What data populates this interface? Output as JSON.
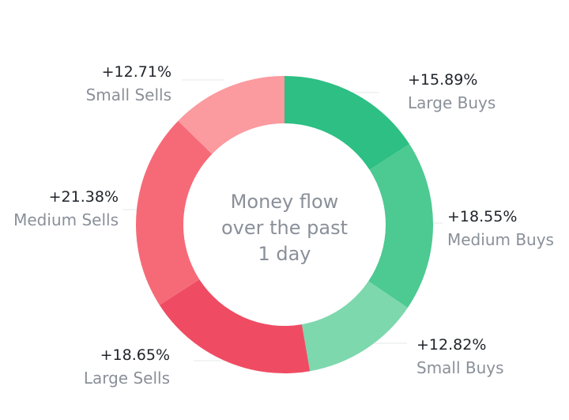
{
  "chart_data": {
    "type": "pie",
    "variant": "donut",
    "center_text": [
      "Money flow",
      "over the past",
      "1 day"
    ],
    "slices": [
      {
        "value_label": "+15.89%",
        "name": "Large Buys",
        "value": 15.89,
        "color": "#2dbf84"
      },
      {
        "value_label": "+18.55%",
        "name": "Medium Buys",
        "value": 18.55,
        "color": "#4dc992"
      },
      {
        "value_label": "+12.82%",
        "name": "Small Buys",
        "value": 12.82,
        "color": "#7dd8ad"
      },
      {
        "value_label": "+18.65%",
        "name": "Large Sells",
        "value": 18.65,
        "color": "#ef4c63"
      },
      {
        "value_label": "+21.38%",
        "name": "Medium Sells",
        "value": 21.38,
        "color": "#f66a78"
      },
      {
        "value_label": "+12.71%",
        "name": "Small Sells",
        "value": 12.71,
        "color": "#fb9a9f"
      }
    ],
    "colors": {
      "value_text": "#1e2329",
      "name_text": "#8a9099",
      "center_text": "#8a9099",
      "leader": "#e6e8ea"
    }
  }
}
